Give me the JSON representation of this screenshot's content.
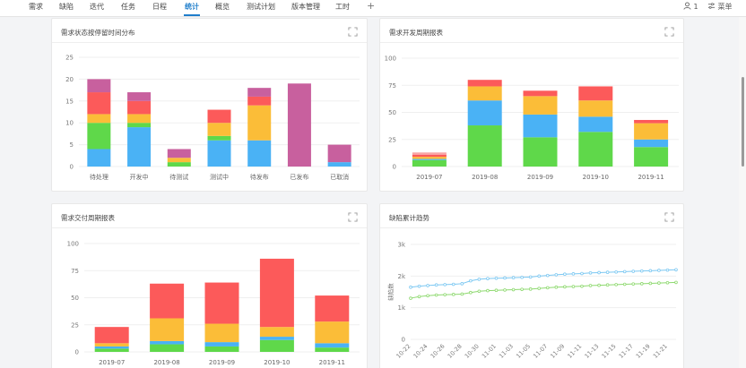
{
  "nav": {
    "tabs": [
      "需求",
      "缺陷",
      "迭代",
      "任务",
      "日程",
      "统计",
      "概览",
      "测试计划",
      "版本管理",
      "工时"
    ],
    "active_index": 5,
    "add_label": "+",
    "user_count": "1",
    "menu_label": "菜单"
  },
  "colors": {
    "accent": "#1f7ecb",
    "green": "#5fd84a",
    "blue": "#4ab2f5",
    "orange": "#fbbd38",
    "red": "#fc5a5a",
    "purple": "#c8609e",
    "pink": "#f9a6a6"
  },
  "cards": [
    {
      "title": "需求状态按停留时间分布",
      "chart_data": {
        "type": "bar",
        "stacked": true,
        "categories": [
          "待处理",
          "开发中",
          "待测试",
          "测试中",
          "待发布",
          "已发布",
          "已取消"
        ],
        "series": [
          {
            "color": "#4ab2f5",
            "values": [
              4,
              9,
              0,
              6,
              6,
              0,
              1
            ]
          },
          {
            "color": "#5fd84a",
            "values": [
              6,
              1,
              1,
              1,
              0,
              0,
              0
            ]
          },
          {
            "color": "#fbbd38",
            "values": [
              2,
              2,
              1,
              3,
              8,
              0,
              0
            ]
          },
          {
            "color": "#fc5a5a",
            "values": [
              5,
              3,
              0,
              3,
              2,
              0,
              0
            ]
          },
          {
            "color": "#c8609e",
            "values": [
              3,
              2,
              2,
              0,
              2,
              19,
              4
            ]
          }
        ],
        "ylim": [
          0,
          25
        ],
        "yticks": [
          0,
          5,
          10,
          15,
          20,
          25
        ]
      }
    },
    {
      "title": "需求开发周期报表",
      "chart_data": {
        "type": "bar",
        "stacked": true,
        "categories": [
          "2019-07",
          "2019-08",
          "2019-09",
          "2019-10",
          "2019-11"
        ],
        "series": [
          {
            "color": "#5fd84a",
            "values": [
              6,
              38,
              27,
              32,
              18
            ]
          },
          {
            "color": "#4ab2f5",
            "values": [
              1,
              23,
              21,
              14,
              7
            ]
          },
          {
            "color": "#fbbd38",
            "values": [
              2,
              13,
              17,
              15,
              15
            ]
          },
          {
            "color": "#fc5a5a",
            "values": [
              2,
              6,
              5,
              13,
              3
            ]
          },
          {
            "color": "#f9a6a6",
            "values": [
              2,
              0,
              0,
              0,
              0
            ]
          }
        ],
        "ylim": [
          0,
          100
        ],
        "yticks": [
          0,
          25,
          50,
          75,
          100
        ]
      }
    },
    {
      "title": "需求交付周期报表",
      "chart_data": {
        "type": "bar",
        "stacked": true,
        "categories": [
          "2019-07",
          "2019-08",
          "2019-09",
          "2019-10",
          "2019-11"
        ],
        "series": [
          {
            "color": "#5fd84a",
            "values": [
              3,
              7,
              5,
              11,
              4
            ]
          },
          {
            "color": "#4ab2f5",
            "values": [
              2,
              3,
              4,
              3,
              4
            ]
          },
          {
            "color": "#fbbd38",
            "values": [
              3,
              21,
              17,
              9,
              20
            ]
          },
          {
            "color": "#fc5a5a",
            "values": [
              15,
              32,
              38,
              63,
              24
            ]
          }
        ],
        "ylim": [
          0,
          100
        ],
        "yticks": [
          0,
          25,
          50,
          75,
          100
        ]
      }
    },
    {
      "title": "缺陷累计趋势",
      "chart_data": {
        "type": "line",
        "ylabel": "缺陷数",
        "x": [
          "10-22",
          "10-23",
          "10-24",
          "10-25",
          "10-26",
          "10-27",
          "10-28",
          "10-29",
          "10-30",
          "10-31",
          "11-01",
          "11-02",
          "11-03",
          "11-04",
          "11-05",
          "11-06",
          "11-07",
          "11-08",
          "11-09",
          "11-10",
          "11-11",
          "11-12",
          "11-13",
          "11-14",
          "11-15",
          "11-16",
          "11-17",
          "11-18",
          "11-19",
          "11-20",
          "11-21",
          "11-22"
        ],
        "xticks": [
          "10-22",
          "10-24",
          "10-26",
          "10-28",
          "10-30",
          "11-01",
          "11-03",
          "11-05",
          "11-07",
          "11-09",
          "11-11",
          "11-13",
          "11-15",
          "11-17",
          "11-19",
          "11-21"
        ],
        "series": [
          {
            "color": "#7cc8f2",
            "values": [
              1650,
              1680,
              1700,
              1720,
              1730,
              1740,
              1760,
              1850,
              1900,
              1920,
              1930,
              1940,
              1950,
              1960,
              1970,
              2000,
              2020,
              2040,
              2060,
              2070,
              2080,
              2100,
              2110,
              2120,
              2130,
              2140,
              2150,
              2160,
              2170,
              2180,
              2190,
              2200
            ]
          },
          {
            "color": "#8ed96f",
            "values": [
              1300,
              1350,
              1380,
              1400,
              1410,
              1420,
              1430,
              1480,
              1520,
              1540,
              1550,
              1560,
              1570,
              1580,
              1590,
              1610,
              1630,
              1650,
              1660,
              1670,
              1680,
              1700,
              1710,
              1720,
              1730,
              1740,
              1750,
              1760,
              1770,
              1780,
              1790,
              1800
            ]
          }
        ],
        "ylim": [
          0,
          3000
        ],
        "yticks": [
          0,
          1000,
          2000,
          3000
        ],
        "ytick_labels": [
          "0",
          "1k",
          "2k",
          "3k"
        ]
      }
    }
  ]
}
